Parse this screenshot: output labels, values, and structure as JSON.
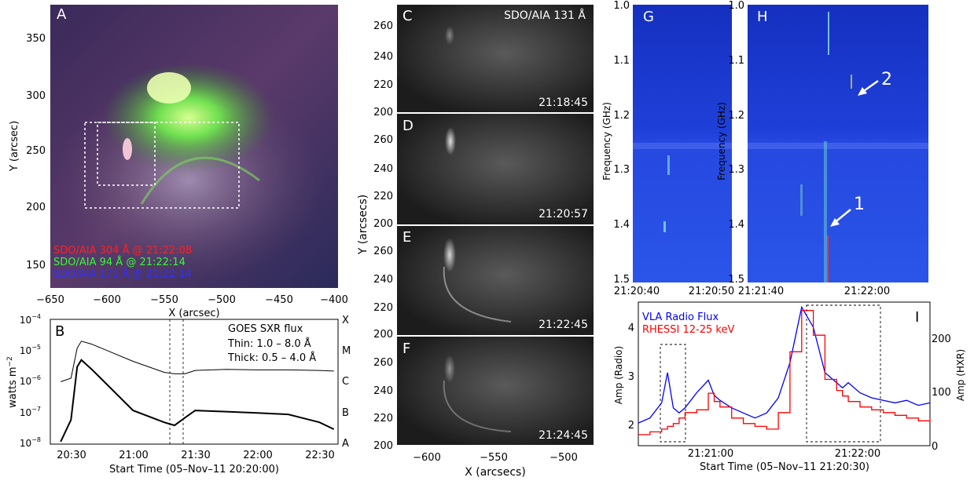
{
  "panelA": {
    "letter": "A",
    "ylabel": "Y (arcsec)",
    "xlabel": "X (arcsec)",
    "yticks": [
      "350",
      "300",
      "250",
      "200",
      "150"
    ],
    "xticks": [
      "−650",
      "−600",
      "−550",
      "−500",
      "−450",
      "−400"
    ],
    "legend": [
      {
        "text": "SDO/AIA 304 Å @ 21:22:08",
        "color": "#ff2020"
      },
      {
        "text": "SDO/AIA 94 Å @ 21:22:14",
        "color": "#30ff30"
      },
      {
        "text": "SDO/AIA 171 Å @ 21:22:14",
        "color": "#3030ff"
      }
    ]
  },
  "panelB": {
    "letter": "B",
    "ylabel": "watts m",
    "ylabel_sup": "−2",
    "yticks": [
      "10",
      "10",
      "10",
      "10",
      "10"
    ],
    "yexps": [
      "−4",
      "−5",
      "−6",
      "−7",
      "−8"
    ],
    "classes": [
      "X",
      "M",
      "C",
      "B",
      "A"
    ],
    "xticks": [
      "20:30",
      "21:00",
      "21:30",
      "22:00",
      "22:30"
    ],
    "xlabel": "Start Time (05–Nov–11 20:20:00)",
    "legend_title": "GOES SXR flux",
    "legend_thin": "Thin: 1.0 – 8.0 Å",
    "legend_thick": "Thick: 0.5 – 4.0 Å"
  },
  "panelsCF": {
    "instrument": "SDO/AIA 131 Å",
    "ylabel": "Y (arcsecs)",
    "xlabel": "X (arcsecs)",
    "xticks": [
      "−600",
      "−550",
      "−500"
    ],
    "yticks": [
      "260",
      "240",
      "220",
      "200"
    ],
    "frames": [
      {
        "letter": "C",
        "time": "21:18:45"
      },
      {
        "letter": "D",
        "time": "21:20:57"
      },
      {
        "letter": "E",
        "time": "21:22:45"
      },
      {
        "letter": "F",
        "time": "21:24:45"
      }
    ]
  },
  "panelG": {
    "letter": "G",
    "ylabel": "Frequency (GHz)",
    "yticks": [
      "1.0",
      "1.1",
      "1.2",
      "1.3",
      "1.4",
      "1.5"
    ],
    "xticks": [
      "21:20:40",
      "21:20:50"
    ]
  },
  "panelH": {
    "letter": "H",
    "ylabel": "Frequency (GHz)",
    "yticks": [
      "1.0",
      "1.1",
      "1.2",
      "1.3",
      "1.4",
      "1.5"
    ],
    "xticks": [
      "21:21:40",
      "21:22:00"
    ],
    "arrow1": "1",
    "arrow2": "2"
  },
  "panelI": {
    "letter": "I",
    "legend_vla": "VLA Radio Flux",
    "legend_rhessi": "RHESSI 12-25 keV",
    "ylabel_left": "Amp (Radio)",
    "ylabel_right": "Amp (HXR)",
    "yticks_left": [
      "4",
      "3",
      "2"
    ],
    "yticks_right": [
      "200",
      "100",
      "0"
    ],
    "xticks": [
      "21:21:00",
      "21:22:00"
    ],
    "xlabel": "Start Time (05–Nov–11 21:20:30)",
    "vla_color": "#0000ff",
    "rhessi_color": "#ff0000"
  },
  "chart_data": [
    {
      "type": "line",
      "title": "GOES SXR flux",
      "xlabel": "Start Time (05–Nov–11 20:20:00)",
      "ylabel": "watts m^-2",
      "yscale": "log",
      "ylim": [
        1e-08,
        0.0001
      ],
      "x": [
        "20:25",
        "20:30",
        "20:33",
        "20:35",
        "20:40",
        "21:00",
        "21:15",
        "21:20",
        "21:25",
        "21:30",
        "21:45",
        "22:00",
        "22:15",
        "22:30",
        "22:37"
      ],
      "series": [
        {
          "name": "Thin: 1.0 – 8.0 Å",
          "values": [
            1e-06,
            1.3e-06,
            1.2e-05,
            2e-05,
            1.6e-05,
            4.5e-06,
            2e-06,
            1.8e-06,
            1.8e-06,
            2.3e-06,
            2.5e-06,
            2.4e-06,
            2.4e-06,
            2.3e-06,
            2.2e-06
          ]
        },
        {
          "name": "Thick: 0.5 – 4.0 Å",
          "values": [
            1.2e-08,
            6e-08,
            3e-06,
            5e-06,
            2.5e-06,
            1.2e-07,
            5e-08,
            4e-08,
            7e-08,
            1.2e-07,
            1.1e-07,
            1e-07,
            9e-08,
            5e-08,
            3e-08
          ]
        }
      ],
      "vlines": [
        "21:18",
        "21:24"
      ],
      "right_axis": [
        "X",
        "M",
        "C",
        "B",
        "A"
      ]
    },
    {
      "type": "line",
      "title": "",
      "xlabel": "Start Time (05–Nov–11 21:20:30)",
      "ylabel": "Amp (Radio)",
      "ylabel_right": "Amp (HXR)",
      "ylim": [
        1.55,
        4.4
      ],
      "ylim_right": [
        0,
        260
      ],
      "x_seconds": [
        0,
        10,
        20,
        25,
        30,
        35,
        40,
        50,
        60,
        65,
        70,
        80,
        90,
        100,
        110,
        120,
        130,
        140,
        150,
        160,
        170,
        175,
        180,
        190,
        200,
        210,
        220,
        230,
        240,
        250
      ],
      "series": [
        {
          "name": "VLA Radio Flux",
          "values": [
            2.0,
            2.1,
            2.4,
            3.0,
            2.3,
            2.2,
            2.3,
            2.6,
            2.85,
            2.55,
            2.45,
            2.3,
            2.2,
            2.1,
            2.2,
            2.5,
            3.2,
            4.3,
            3.9,
            3.0,
            2.8,
            2.7,
            2.8,
            2.6,
            2.5,
            2.45,
            2.4,
            2.45,
            2.35,
            2.4
          ]
        },
        {
          "name": "RHESSI 12-25 keV",
          "values": [
            20,
            25,
            30,
            35,
            40,
            50,
            60,
            65,
            95,
            80,
            70,
            50,
            40,
            35,
            30,
            60,
            170,
            245,
            200,
            120,
            100,
            90,
            80,
            70,
            65,
            60,
            55,
            50,
            45,
            50
          ]
        }
      ],
      "boxes": [
        [
          21,
          31
        ],
        [
          124,
          190
        ]
      ]
    }
  ]
}
